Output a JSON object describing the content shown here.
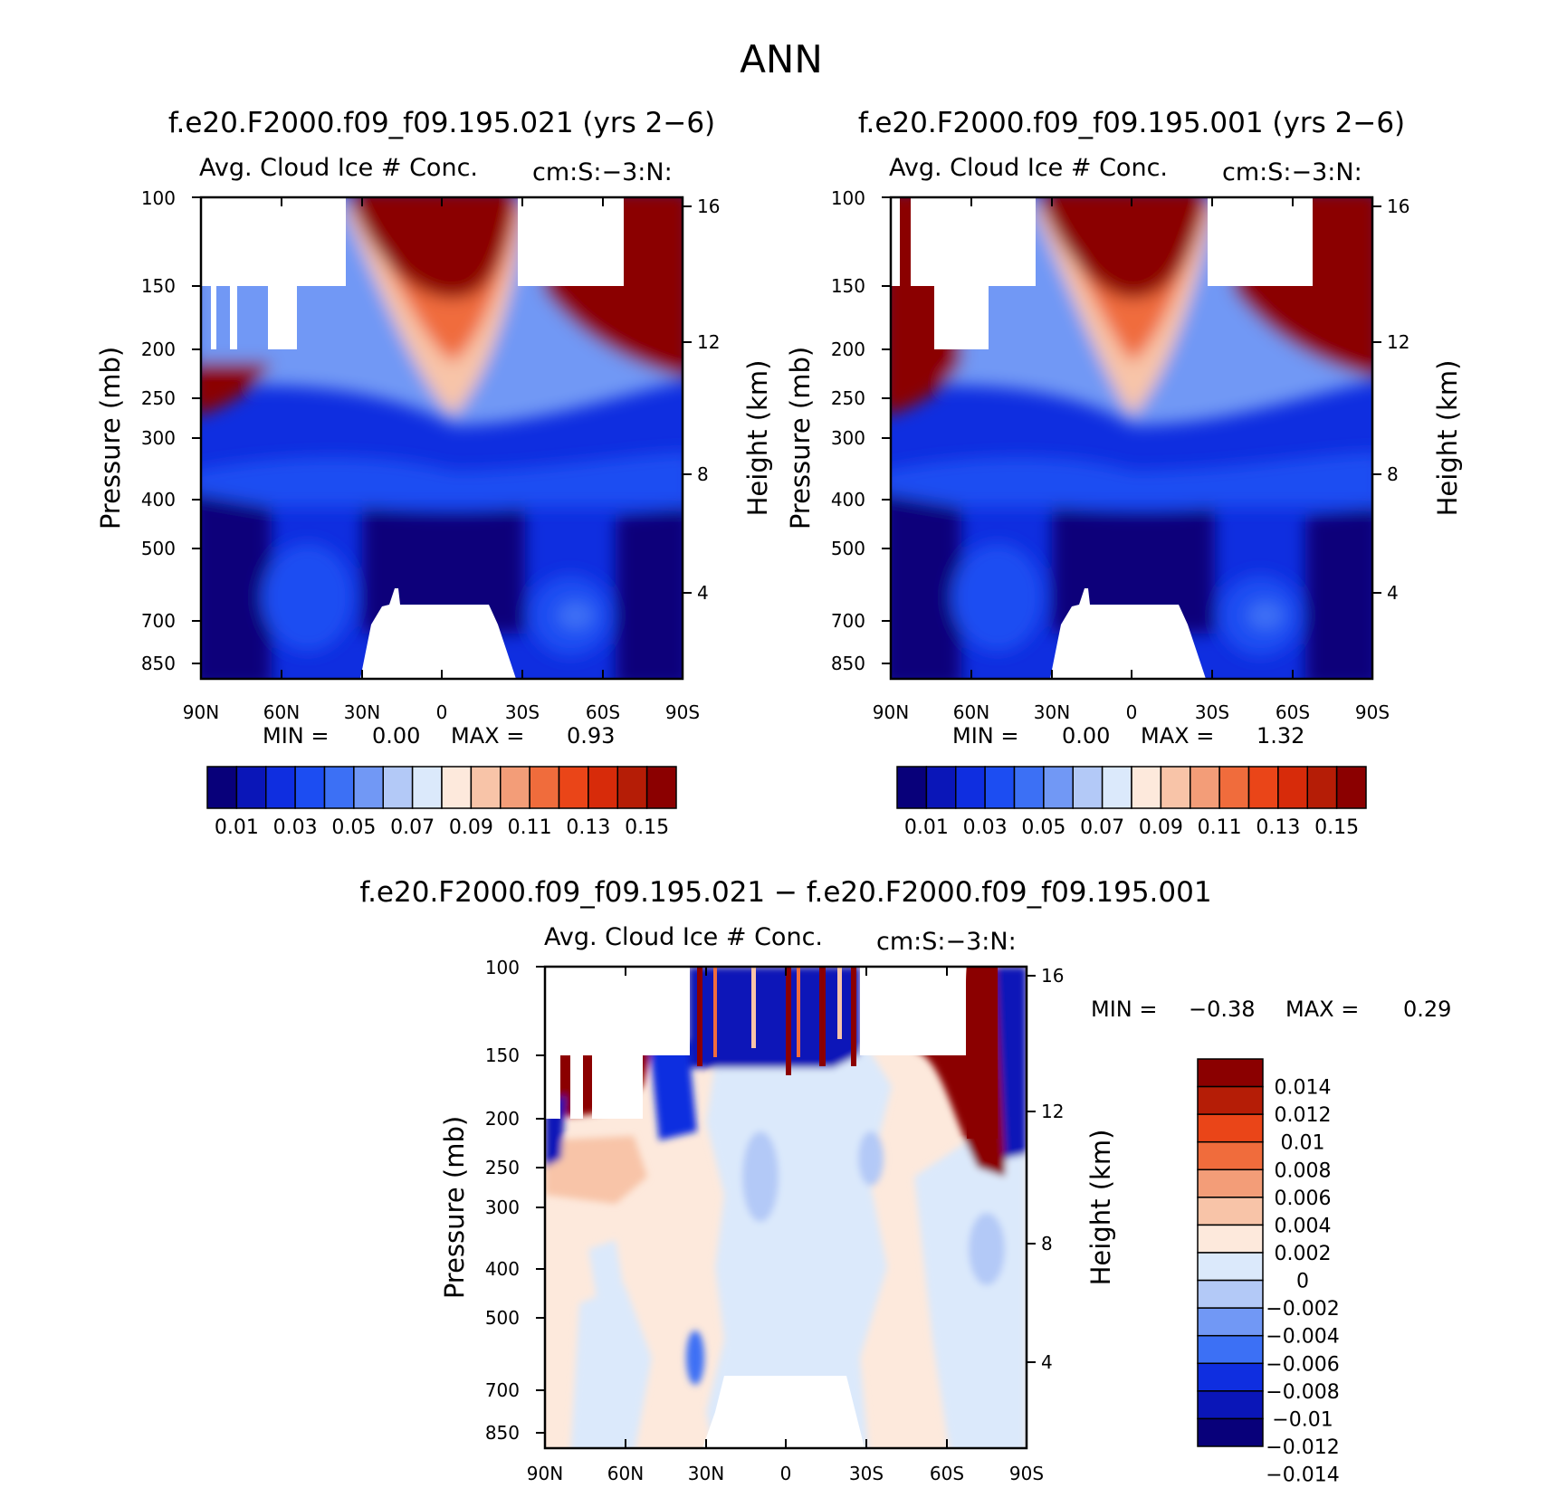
{
  "figure": {
    "title": "ANN",
    "colors": {
      "panels": [
        "#08007a",
        "#0a16b8",
        "#0f2ee0",
        "#1c4df2",
        "#3c70f5",
        "#7198f5",
        "#b3c9f7",
        "#dbe9fb",
        "#fde9dc",
        "#f8c4a8",
        "#f39d78",
        "#f06c3c",
        "#ea4518",
        "#d72b0a",
        "#b51d06",
        "#8b0000"
      ],
      "diff": [
        "#08007a",
        "#0a16b8",
        "#0f2ee0",
        "#3c70f5",
        "#7198f5",
        "#b3c9f7",
        "#dbe9fb",
        "#fde9dc",
        "#f8c4a8",
        "#f39d78",
        "#f06c3c",
        "#ea4518",
        "#b51d06",
        "#8b0000"
      ]
    }
  },
  "panels": [
    {
      "title": "f.e20.F2000.f09_f09.195.021 (yrs 2−6)",
      "main_label": "Avg. Cloud Ice # Conc.",
      "units": "cm:S:−3:N:",
      "ylabel_left": "Pressure (mb)",
      "ylabel_right": "Height (km)",
      "min_label": "MIN =",
      "min_value": "0.00",
      "max_label": "MAX =",
      "max_value": "0.93"
    },
    {
      "title": "f.e20.F2000.f09_f09.195.001 (yrs 2−6)",
      "main_label": "Avg. Cloud Ice # Conc.",
      "units": "cm:S:−3:N:",
      "ylabel_left": "Pressure (mb)",
      "ylabel_right": "Height (km)",
      "min_label": "MIN =",
      "min_value": "0.00",
      "max_label": "MAX =",
      "max_value": "1.32"
    },
    {
      "title": "f.e20.F2000.f09_f09.195.021 − f.e20.F2000.f09_f09.195.001",
      "main_label": "Avg. Cloud Ice # Conc.",
      "units": "cm:S:−3:N:",
      "ylabel_left": "Pressure (mb)",
      "ylabel_right": "Height (km)",
      "min_label": "MIN =",
      "min_value": "−0.38",
      "max_label": "MAX =",
      "max_value": "0.29"
    }
  ],
  "chart_data": [
    {
      "type": "heatmap",
      "title": "f.e20.F2000.f09_f09.195.021 (yrs 2−6)",
      "subtitle": "Avg. Cloud Ice # Conc. cm:S:−3:N:",
      "xlabel": "",
      "ylabel": "Pressure (mb)",
      "ylabel_right": "Height (km)",
      "x_ticks": [
        "90N",
        "60N",
        "30N",
        "0",
        "30S",
        "60S",
        "90S"
      ],
      "y_ticks": [
        "100",
        "150",
        "200",
        "250",
        "300",
        "400",
        "500",
        "700",
        "850"
      ],
      "y_ticks_right": [
        "16",
        "12",
        "8",
        "4"
      ],
      "xlim": [
        90,
        -90
      ],
      "ylim": [
        100,
        1000
      ],
      "min": 0.0,
      "max": 0.93,
      "colorbar_labels": [
        "0.01",
        "0.03",
        "0.05",
        "0.07",
        "0.09",
        "0.11",
        "0.13",
        "0.15"
      ],
      "levels": [
        0.01,
        0.02,
        0.03,
        0.04,
        0.05,
        0.06,
        0.07,
        0.08,
        0.09,
        0.1,
        0.11,
        0.12,
        0.13,
        0.14,
        0.15
      ]
    },
    {
      "type": "heatmap",
      "title": "f.e20.F2000.f09_f09.195.001 (yrs 2−6)",
      "subtitle": "Avg. Cloud Ice # Conc. cm:S:−3:N:",
      "xlabel": "",
      "ylabel": "Pressure (mb)",
      "ylabel_right": "Height (km)",
      "x_ticks": [
        "90N",
        "60N",
        "30N",
        "0",
        "30S",
        "60S",
        "90S"
      ],
      "y_ticks": [
        "100",
        "150",
        "200",
        "250",
        "300",
        "400",
        "500",
        "700",
        "850"
      ],
      "y_ticks_right": [
        "16",
        "12",
        "8",
        "4"
      ],
      "xlim": [
        90,
        -90
      ],
      "ylim": [
        100,
        1000
      ],
      "min": 0.0,
      "max": 1.32,
      "colorbar_labels": [
        "0.01",
        "0.03",
        "0.05",
        "0.07",
        "0.09",
        "0.11",
        "0.13",
        "0.15"
      ],
      "levels": [
        0.01,
        0.02,
        0.03,
        0.04,
        0.05,
        0.06,
        0.07,
        0.08,
        0.09,
        0.1,
        0.11,
        0.12,
        0.13,
        0.14,
        0.15
      ]
    },
    {
      "type": "heatmap",
      "title": "f.e20.F2000.f09_f09.195.021 − f.e20.F2000.f09_f09.195.001",
      "subtitle": "Avg. Cloud Ice # Conc. cm:S:−3:N:",
      "xlabel": "",
      "ylabel": "Pressure (mb)",
      "ylabel_right": "Height (km)",
      "x_ticks": [
        "90N",
        "60N",
        "30N",
        "0",
        "30S",
        "60S",
        "90S"
      ],
      "y_ticks": [
        "100",
        "150",
        "200",
        "250",
        "300",
        "400",
        "500",
        "700",
        "850"
      ],
      "y_ticks_right": [
        "16",
        "12",
        "8",
        "4"
      ],
      "xlim": [
        90,
        -90
      ],
      "ylim": [
        100,
        1000
      ],
      "min": -0.38,
      "max": 0.29,
      "colorbar_labels": [
        "0.014",
        "0.012",
        "0.01",
        "0.008",
        "0.006",
        "0.004",
        "0.002",
        "0",
        "−0.002",
        "−0.004",
        "−0.006",
        "−0.008",
        "−0.01",
        "−0.012",
        "−0.014"
      ],
      "levels": [
        0.014,
        0.012,
        0.01,
        0.008,
        0.006,
        0.004,
        0.002,
        0,
        -0.002,
        -0.004,
        -0.006,
        -0.008,
        -0.01,
        -0.012,
        -0.014
      ]
    }
  ]
}
